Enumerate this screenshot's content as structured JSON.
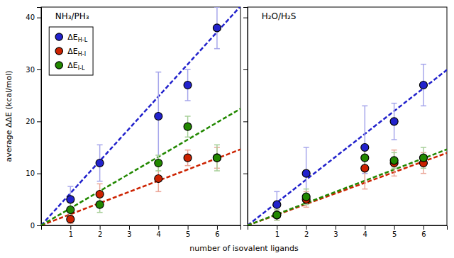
{
  "chart_data": [
    {
      "type": "scatter",
      "title": "NH₃/PH₃",
      "xlabel": "number of isovalent ligands",
      "ylabel": "average ΔΔE (kcal/mol)",
      "xlim": [
        0.0,
        6.8
      ],
      "ylim": [
        0,
        42
      ],
      "xticks": [
        1,
        2,
        3,
        4,
        5,
        6
      ],
      "yticks": [
        0,
        10,
        20,
        30,
        40
      ],
      "grid": false,
      "legend": "upper left",
      "series": [
        {
          "name": "ΔEH-L",
          "color": "#2222cc",
          "marker": "circle",
          "line_style": "dashed",
          "x": [
            1,
            2,
            4,
            5,
            6
          ],
          "values": [
            5.0,
            12.0,
            21.0,
            27.0,
            38.0
          ],
          "yerr_lo": [
            1.5,
            3.5,
            8.5,
            3.0,
            4.0
          ],
          "yerr_hi": [
            2.5,
            3.5,
            8.5,
            3.0,
            4.0
          ],
          "slope": 6.2
        },
        {
          "name": "ΔEH-I",
          "color": "#cc2200",
          "marker": "circle",
          "line_style": "dashed",
          "x": [
            1,
            2,
            4,
            5,
            6
          ],
          "values": [
            1.2,
            6.0,
            9.0,
            13.0,
            13.0
          ],
          "yerr_lo": [
            0.8,
            2.0,
            2.5,
            1.5,
            2.0
          ],
          "yerr_hi": [
            0.8,
            2.0,
            2.5,
            1.5,
            2.0
          ],
          "slope": 2.15
        },
        {
          "name": "ΔEI-L",
          "color": "#228800",
          "marker": "circle",
          "line_style": "dashed",
          "x": [
            1,
            2,
            4,
            5,
            6
          ],
          "values": [
            3.0,
            4.0,
            12.0,
            19.0,
            13.0
          ],
          "yerr_lo": [
            1.5,
            1.5,
            1.5,
            2.0,
            2.5
          ],
          "yerr_hi": [
            1.5,
            1.5,
            1.5,
            2.0,
            2.5
          ],
          "slope": 3.3
        }
      ]
    },
    {
      "type": "scatter",
      "title": "H₂O/H₂S",
      "xlim": [
        0.0,
        6.8
      ],
      "ylim": [
        0,
        42
      ],
      "xticks": [
        1,
        2,
        3,
        4,
        5,
        6
      ],
      "yticks": [
        0,
        10,
        20,
        30,
        40
      ],
      "grid": false,
      "tick_labels": "x",
      "series": [
        {
          "color": "#2222cc",
          "marker": "circle",
          "line_style": "dashed",
          "x": [
            1,
            2,
            4,
            5,
            6
          ],
          "values": [
            4.0,
            10.0,
            15.0,
            20.0,
            27.0
          ],
          "yerr_lo": [
            1.5,
            5.0,
            5.0,
            3.5,
            4.0
          ],
          "yerr_hi": [
            2.5,
            5.0,
            8.0,
            3.5,
            4.0
          ],
          "slope": 4.4
        },
        {
          "color": "#cc2200",
          "marker": "circle",
          "line_style": "dashed",
          "x": [
            1,
            2,
            4,
            5,
            6
          ],
          "values": [
            2.0,
            5.0,
            11.0,
            12.0,
            12.0
          ],
          "yerr_lo": [
            1.0,
            1.5,
            4.0,
            2.5,
            2.0
          ],
          "yerr_hi": [
            1.0,
            1.5,
            4.0,
            2.5,
            2.0
          ],
          "slope": 2.05
        },
        {
          "color": "#228800",
          "marker": "circle",
          "line_style": "dashed",
          "x": [
            1,
            2,
            4,
            5,
            6
          ],
          "values": [
            2.0,
            5.5,
            13.0,
            12.5,
            13.0
          ],
          "yerr_lo": [
            1.0,
            1.5,
            1.5,
            1.5,
            2.0
          ],
          "yerr_hi": [
            1.0,
            1.5,
            1.5,
            1.5,
            2.0
          ],
          "slope": 2.15
        }
      ]
    }
  ]
}
